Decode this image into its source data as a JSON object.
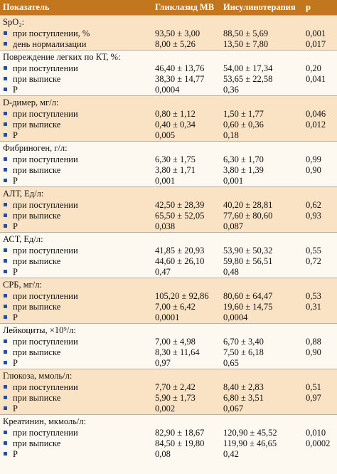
{
  "header": {
    "col1": "Показатель",
    "col2": "Гликлазид МВ",
    "col3": "Инсулинотерапия",
    "col4": "p"
  },
  "rows": [
    {
      "title": "SpO₂:",
      "items": [
        "при поступлении, %",
        "день нормализации"
      ],
      "g": [
        "93,50 ± 3,00",
        "8,00 ± 5,26"
      ],
      "i": [
        "88,50 ± 5,69",
        "13,50 ± 7,80"
      ],
      "p": [
        "0,001",
        "0,017"
      ]
    },
    {
      "title": "Повреждение легких по КТ, %:",
      "items": [
        "при поступлении",
        "при выписке",
        "P"
      ],
      "g": [
        "46,40 ± 13,76",
        "38,30 ± 14,77",
        "0,0004"
      ],
      "i": [
        "54,00 ± 17,34",
        "53,65 ± 22,58",
        "0,36"
      ],
      "p": [
        "0,20",
        "0,041",
        ""
      ]
    },
    {
      "title": "D-димер, мг/л:",
      "items": [
        "при поступлении",
        "при выписке",
        "P"
      ],
      "g": [
        "0,80 ± 1,12",
        "0,40 ± 0,34",
        "0,005"
      ],
      "i": [
        "1,50 ± 1,77",
        "0,60 ± 0,36",
        "0,18"
      ],
      "p": [
        "0,046",
        "0,012",
        ""
      ]
    },
    {
      "title": "Фибриноген, г/л:",
      "items": [
        "при поступлении",
        "при выписке",
        "P"
      ],
      "g": [
        "6,30 ± 1,75",
        "3,80 ± 1,71",
        "0,001"
      ],
      "i": [
        "6,30 ± 1,70",
        "3,80 ± 1,39",
        "0,001"
      ],
      "p": [
        "0,99",
        "0,90",
        ""
      ]
    },
    {
      "title": "АЛТ, Ед/л:",
      "items": [
        "при поступлении",
        "при выписке",
        "P"
      ],
      "g": [
        "42,50 ± 28,39",
        "65,50 ± 52,05",
        "0,038"
      ],
      "i": [
        "40,20 ± 28,81",
        "77,60 ± 80,60",
        "0,087"
      ],
      "p": [
        "0,62",
        "0,93",
        ""
      ]
    },
    {
      "title": "АСТ, Ед/л:",
      "items": [
        "при поступлении",
        "при выписке",
        "P"
      ],
      "g": [
        "41,85 ± 20,93",
        "44,60 ± 26,10",
        "0,47"
      ],
      "i": [
        "53,90 ± 50,32",
        "59,80 ± 56,51",
        "0,48"
      ],
      "p": [
        "0,55",
        "0,72",
        ""
      ]
    },
    {
      "title": "СРБ, мг/л:",
      "items": [
        "при поступлении",
        "при выписке",
        "P"
      ],
      "g": [
        "105,20 ± 92,86",
        "7,00 ± 6,42",
        "0,0001"
      ],
      "i": [
        "80,60 ± 64,47",
        "19,60 ± 14,75",
        "0,0004"
      ],
      "p": [
        "0,53",
        "0,31",
        ""
      ]
    },
    {
      "title": "Лейкоциты, ×10⁹/л:",
      "items": [
        "при поступлении",
        "при выписке",
        "P"
      ],
      "g": [
        "7,00 ± 4,98",
        "8,30 ± 11,64",
        "0,97"
      ],
      "i": [
        "6,70 ± 3,40",
        "7,50 ± 6,18",
        "0,65"
      ],
      "p": [
        "0,88",
        "0,90",
        ""
      ]
    },
    {
      "title": "Глюкоза, ммоль/л:",
      "items": [
        "при поступлении",
        "при выписке",
        "P"
      ],
      "g": [
        "7,70 ± 2,42",
        "5,90 ± 1,73",
        "0,002"
      ],
      "i": [
        "8,40 ± 2,83",
        "6,80 ± 3,51",
        "0,067"
      ],
      "p": [
        "0,51",
        "0,97",
        ""
      ]
    },
    {
      "title": "Креатинин, мкмоль/л:",
      "items": [
        "при поступлении",
        "при выписке",
        "P"
      ],
      "g": [
        "82,90 ± 18,67",
        "84,50 ± 19,80",
        "0,08"
      ],
      "i": [
        "120,90 ± 45,52",
        "119,90 ± 46,65",
        "0,42"
      ],
      "p": [
        "0,010",
        "0,0002",
        ""
      ]
    }
  ]
}
